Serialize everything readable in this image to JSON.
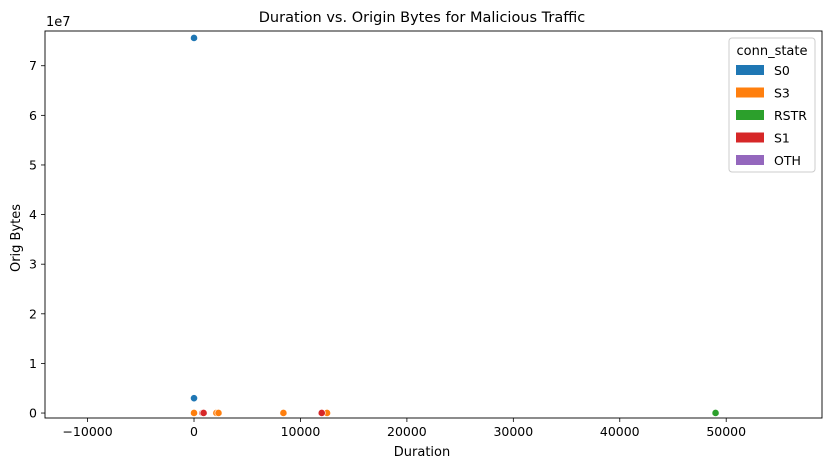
{
  "chart_data": {
    "type": "scatter",
    "title": "Duration vs. Origin Bytes for Malicious Traffic",
    "xlabel": "Duration",
    "ylabel": "Orig Bytes",
    "y_offset_label": "1e7",
    "xlim": [
      -14000,
      59000
    ],
    "ylim": [
      -1000000,
      77000000
    ],
    "xticks": [
      -10000,
      0,
      10000,
      20000,
      30000,
      40000,
      50000
    ],
    "yticks": [
      0,
      10000000,
      20000000,
      30000000,
      40000000,
      50000000,
      60000000,
      70000000
    ],
    "xtick_labels": [
      "−10000",
      "0",
      "10000",
      "20000",
      "30000",
      "40000",
      "50000"
    ],
    "ytick_labels": [
      "0",
      "1",
      "2",
      "3",
      "4",
      "5",
      "6",
      "7"
    ],
    "grid": false,
    "legend": {
      "title": "conn_state",
      "placement": "top-right"
    },
    "series": [
      {
        "name": "S0",
        "color": "#1f77b4",
        "points": [
          [
            0,
            75600000
          ],
          [
            0,
            3000000
          ]
        ]
      },
      {
        "name": "S3",
        "color": "#ff7f0e",
        "points": [
          [
            0,
            20000
          ],
          [
            2100,
            20000
          ],
          [
            2300,
            20000
          ],
          [
            8400,
            20000
          ],
          [
            12500,
            20000
          ]
        ]
      },
      {
        "name": "RSTR",
        "color": "#2ca02c",
        "points": [
          [
            49000,
            20000
          ]
        ]
      },
      {
        "name": "S1",
        "color": "#d62728",
        "points": [
          [
            800,
            20000
          ],
          [
            900,
            20000
          ],
          [
            12000,
            20000
          ]
        ]
      },
      {
        "name": "OTH",
        "color": "#9467bd",
        "points": []
      }
    ]
  }
}
